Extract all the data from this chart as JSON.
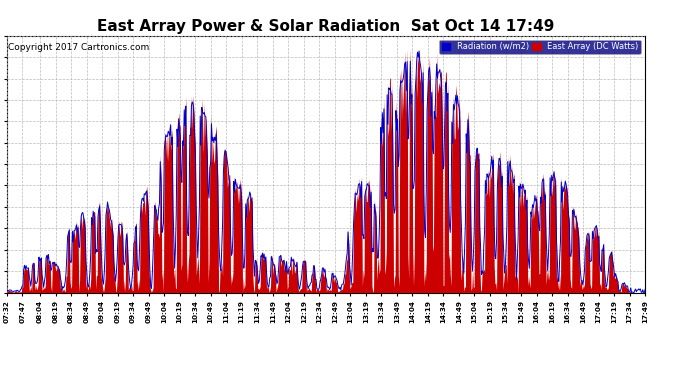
{
  "title": "East Array Power & Solar Radiation  Sat Oct 14 17:49",
  "copyright": "Copyright 2017 Cartronics.com",
  "legend_radiation": "Radiation (w/m2)",
  "legend_east": "East Array (DC Watts)",
  "ymin": 0.0,
  "ymax": 188.6,
  "yticks": [
    0.0,
    15.7,
    31.4,
    47.1,
    62.9,
    78.6,
    94.3,
    110.0,
    125.7,
    141.4,
    157.1,
    172.9,
    188.6
  ],
  "bg_color": "#ffffff",
  "plot_bg": "#ffffff",
  "grid_color": "#bbbbbb",
  "radiation_color": "#0000cc",
  "east_color": "#cc0000",
  "title_color": "#000000",
  "title_fontsize": 11,
  "copyright_fontsize": 6.5,
  "xtick_labels": [
    "07:32",
    "07:47",
    "08:04",
    "08:19",
    "08:34",
    "08:49",
    "09:04",
    "09:19",
    "09:34",
    "09:49",
    "10:04",
    "10:19",
    "10:34",
    "10:49",
    "11:04",
    "11:19",
    "11:34",
    "11:49",
    "12:04",
    "12:19",
    "12:34",
    "12:49",
    "13:04",
    "13:19",
    "13:34",
    "13:49",
    "14:04",
    "14:19",
    "14:34",
    "14:49",
    "15:04",
    "15:19",
    "15:34",
    "15:49",
    "16:04",
    "16:19",
    "16:34",
    "16:49",
    "17:04",
    "17:19",
    "17:34",
    "17:49"
  ]
}
